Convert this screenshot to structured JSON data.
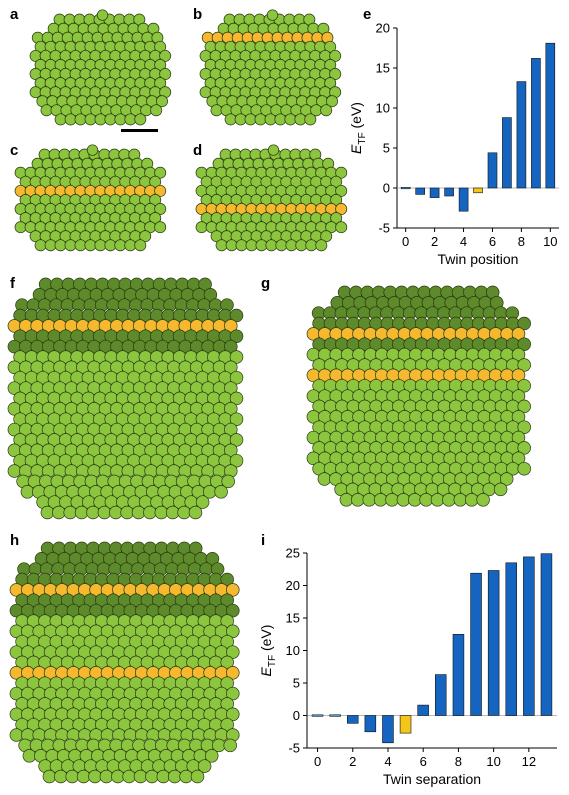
{
  "labels": {
    "a": "a",
    "b": "b",
    "c": "c",
    "d": "d",
    "e": "e",
    "f": "f",
    "g": "g",
    "h": "h",
    "i": "i"
  },
  "colors": {
    "atom_green": "#8cc63f",
    "atom_green_dark": "#5d8a2a",
    "atom_yellow": "#f5b82e",
    "bar_blue": "#1565c0",
    "bar_light_blue": "#4aa8e0",
    "bar_yellow": "#f5c518"
  },
  "chart_data": [
    {
      "panel": "e",
      "type": "bar",
      "xlabel": "Twin position",
      "ylabel_main": "E",
      "ylabel_sub": "TF",
      "ylabel_unit": " (eV)",
      "x": [
        0,
        1,
        2,
        3,
        4,
        5,
        6,
        7,
        8,
        9,
        10
      ],
      "values": [
        0,
        -0.8,
        -1.2,
        -1.0,
        -2.9,
        -0.6,
        4.4,
        8.8,
        13.3,
        16.2,
        18.1
      ],
      "highlight": {
        "0": "light",
        "5": "yellow"
      },
      "xlim": [
        -0.6,
        10.6
      ],
      "ylim": [
        -5,
        20
      ],
      "xticks": [
        0,
        2,
        4,
        6,
        8,
        10
      ],
      "yticks": [
        -5,
        0,
        5,
        10,
        15,
        20
      ],
      "grid": false
    },
    {
      "panel": "i",
      "type": "bar",
      "xlabel": "Twin separation",
      "ylabel_main": "E",
      "ylabel_sub": "TF",
      "ylabel_unit": " (eV)",
      "x": [
        0,
        1,
        2,
        3,
        4,
        5,
        6,
        7,
        8,
        9,
        10,
        11,
        12,
        13
      ],
      "values": [
        0,
        0,
        -1.2,
        -2.5,
        -4.2,
        -2.7,
        1.6,
        6.3,
        12.5,
        21.9,
        22.3,
        23.5,
        24.4,
        24.9
      ],
      "highlight": {
        "0": "light",
        "1": "light",
        "5": "yellow"
      },
      "xlim": [
        -0.6,
        13.6
      ],
      "ylim": [
        -5,
        25
      ],
      "xticks": [
        0,
        2,
        4,
        6,
        8,
        10,
        12
      ],
      "yticks": [
        -5,
        0,
        5,
        10,
        15,
        20,
        25
      ],
      "grid": false
    }
  ]
}
